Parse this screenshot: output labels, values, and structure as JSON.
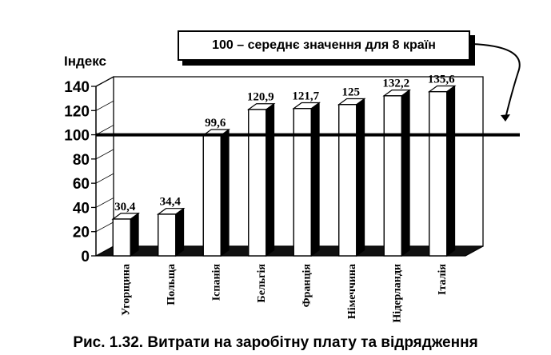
{
  "chart_data": {
    "type": "bar",
    "ylabel": "Індекс",
    "ylim": [
      0,
      140
    ],
    "yticks": [
      0,
      20,
      40,
      60,
      80,
      100,
      120,
      140
    ],
    "categories": [
      "Угорщина",
      "Польща",
      "Іспанія",
      "Бельгія",
      "Франція",
      "Німеччина",
      "Нідерланди",
      "Італія"
    ],
    "values": [
      30.4,
      34.4,
      99.6,
      120.9,
      121.7,
      125,
      132.2,
      135.6
    ],
    "value_labels": [
      "30,4",
      "34,4",
      "99,6",
      "120,9",
      "121,7",
      "125",
      "132,2",
      "135,6"
    ],
    "reference_line": {
      "value": 100,
      "label": "100 – середнє значення  для 8 країн"
    },
    "caption": "Рис. 1.32. Витрати на заробітну плату та відрядження",
    "colors": {
      "bar_front": "#ffffff",
      "bar_side": "#000000",
      "outline": "#000000"
    }
  }
}
